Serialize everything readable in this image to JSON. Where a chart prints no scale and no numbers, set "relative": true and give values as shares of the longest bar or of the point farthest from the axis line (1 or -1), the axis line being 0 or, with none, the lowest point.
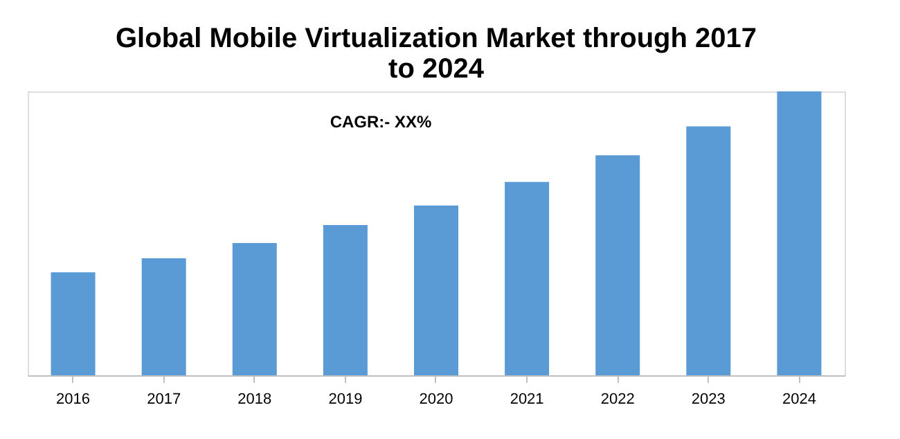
{
  "chart_data": {
    "type": "bar",
    "title": "Global Mobile Virtualization Market through 2017 to 2024",
    "categories": [
      "2016",
      "2017",
      "2018",
      "2019",
      "2020",
      "2021",
      "2022",
      "2023",
      "2024"
    ],
    "values": [
      0.363,
      0.412,
      0.466,
      0.529,
      0.598,
      0.681,
      0.775,
      0.877,
      1
    ],
    "color": "#5b9bd5",
    "relative": true,
    "grid": false,
    "annotations": [
      "CAGR:- XX%"
    ]
  }
}
